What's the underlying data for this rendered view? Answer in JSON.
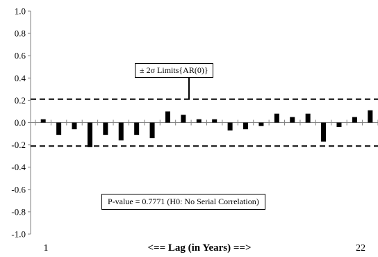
{
  "chart_data": {
    "type": "bar",
    "title": "",
    "xlabel": "<== Lag (in Years) ==>",
    "ylabel": "",
    "ylim": [
      -1.0,
      1.0
    ],
    "yticks": [
      "1.0",
      "0.8",
      "0.6",
      "0.4",
      "0.2",
      "0.0",
      "-0.2",
      "-0.4",
      "-0.6",
      "-0.8",
      "-1.0"
    ],
    "x_first_label": "1",
    "x_last_label": "22",
    "categories": [
      1,
      2,
      3,
      4,
      5,
      6,
      7,
      8,
      9,
      10,
      11,
      12,
      13,
      14,
      15,
      16,
      17,
      18,
      19,
      20,
      21,
      22
    ],
    "values": [
      0.03,
      -0.11,
      -0.06,
      -0.22,
      -0.11,
      -0.16,
      -0.11,
      -0.14,
      0.1,
      0.07,
      0.03,
      0.03,
      -0.07,
      -0.06,
      -0.03,
      0.08,
      0.05,
      0.08,
      -0.17,
      -0.04,
      0.05,
      0.11
    ],
    "limit": 0.21,
    "limit_label": "± 2σ Limits{AR(0)}",
    "annotation": "P-value = 0.7771 (H0: No Serial Correlation)",
    "grid": false,
    "colors": {
      "bars": "#000000",
      "axis": "#808080",
      "limits": "#000000"
    }
  }
}
